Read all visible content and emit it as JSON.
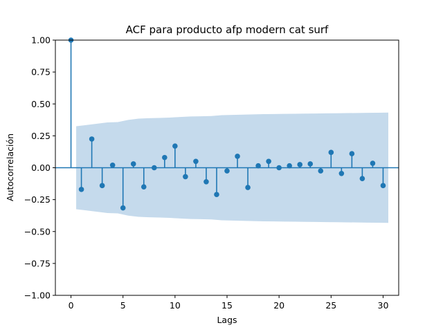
{
  "chart_data": {
    "type": "stem",
    "title": "ACF para producto afp modern cat surf",
    "xlabel": "Lags",
    "ylabel": "Autocorrelación",
    "xlim": [
      -1.5,
      31.5
    ],
    "ylim": [
      -1.0,
      1.0
    ],
    "xticks": [
      0,
      5,
      10,
      15,
      20,
      25,
      30
    ],
    "xtick_labels": [
      "0",
      "5",
      "10",
      "15",
      "20",
      "25",
      "30"
    ],
    "yticks": [
      -1.0,
      -0.75,
      -0.5,
      -0.25,
      0.0,
      0.25,
      0.5,
      0.75,
      1.0
    ],
    "ytick_labels": [
      "−1.00",
      "−0.75",
      "−0.50",
      "−0.25",
      "0.00",
      "0.25",
      "0.50",
      "0.75",
      "1.00"
    ],
    "grid": false,
    "colors": {
      "stem": "#1f77b4",
      "confidence_band": "#c5daec"
    },
    "lags": [
      0,
      1,
      2,
      3,
      4,
      5,
      6,
      7,
      8,
      9,
      10,
      11,
      12,
      13,
      14,
      15,
      16,
      17,
      18,
      19,
      20,
      21,
      22,
      23,
      24,
      25,
      26,
      27,
      28,
      29,
      30
    ],
    "values": [
      1.0,
      -0.17,
      0.225,
      -0.14,
      0.02,
      -0.315,
      0.03,
      -0.15,
      0.0,
      0.08,
      0.17,
      -0.07,
      0.05,
      -0.11,
      -0.21,
      -0.025,
      0.09,
      -0.155,
      0.015,
      0.05,
      0.0,
      0.015,
      0.025,
      0.03,
      -0.025,
      0.12,
      -0.045,
      0.11,
      -0.085,
      0.035,
      -0.14
    ],
    "confidence_band": {
      "lags": [
        0.5,
        1.5,
        2.5,
        3.5,
        4.5,
        5.5,
        6.5,
        7.5,
        8.5,
        9.5,
        10.5,
        11.5,
        12.5,
        13.5,
        14.5,
        15.5,
        16.5,
        17.5,
        18.5,
        19.5,
        20.5,
        21.5,
        22.5,
        23.5,
        24.5,
        25.5,
        26.5,
        27.5,
        28.5,
        29.5,
        30.5
      ],
      "upper": [
        0.325,
        0.335,
        0.345,
        0.355,
        0.358,
        0.375,
        0.385,
        0.388,
        0.39,
        0.393,
        0.398,
        0.402,
        0.403,
        0.405,
        0.412,
        0.414,
        0.416,
        0.418,
        0.42,
        0.421,
        0.422,
        0.423,
        0.424,
        0.425,
        0.426,
        0.427,
        0.428,
        0.429,
        0.43,
        0.431,
        0.432
      ]
    }
  }
}
